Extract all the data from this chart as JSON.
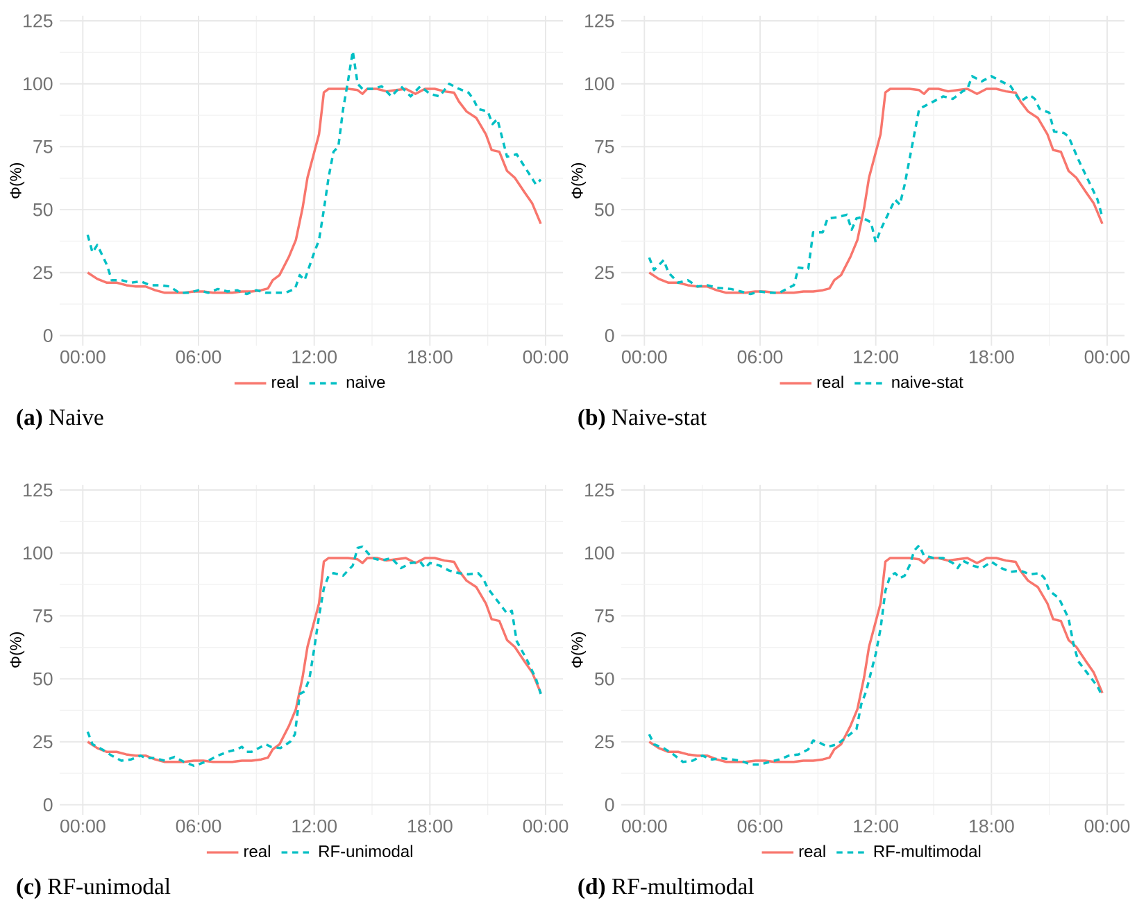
{
  "chart_data": [
    {
      "type": "line",
      "title": "**(a)** Naive",
      "ylabel": "Φ(%)",
      "xlim": [
        -1.2,
        24.9
      ],
      "ylim": [
        -4,
        127
      ],
      "xticks": [
        {
          "value": 0,
          "label": "00:00"
        },
        {
          "value": 6,
          "label": "06:00"
        },
        {
          "value": 12,
          "label": "12:00"
        },
        {
          "value": 18,
          "label": "18:00"
        },
        {
          "value": 24,
          "label": "00:00"
        }
      ],
      "yticks": [
        0,
        25,
        50,
        75,
        100,
        125
      ],
      "grid": true,
      "legend": "bottom",
      "series": [
        {
          "name": "real",
          "color": "#f8766d",
          "line_style": "solid",
          "x": [
            0.25,
            0.75,
            1.25,
            1.75,
            2.25,
            2.75,
            3.25,
            3.75,
            4.25,
            4.75,
            5.25,
            5.75,
            6.25,
            6.75,
            7.25,
            7.75,
            8.25,
            8.75,
            9.25,
            9.6,
            9.85,
            10.2,
            10.7,
            11.05,
            11.4,
            11.65,
            12,
            12.25,
            12.5,
            12.75,
            13.25,
            13.75,
            14.25,
            14.5,
            14.75,
            15.25,
            15.75,
            16.25,
            16.75,
            17.25,
            17.75,
            18.25,
            18.75,
            19.25,
            19.5,
            19.9,
            20.4,
            20.9,
            21.2,
            21.6,
            22,
            22.4,
            22.9,
            23.3,
            23.75
          ],
          "values": [
            25,
            22.5,
            21,
            21,
            20,
            19.5,
            19.5,
            18,
            17,
            17,
            17,
            17.5,
            17.5,
            17,
            17,
            17,
            17.5,
            17.5,
            18,
            18.7,
            22,
            24,
            31.5,
            38,
            50.8,
            62.7,
            72.8,
            80,
            96.6,
            98,
            98,
            98,
            97.5,
            96,
            98,
            98,
            97,
            97.5,
            98,
            96,
            98,
            98,
            97,
            96.5,
            93,
            89,
            86.5,
            80,
            73.7,
            73,
            65.4,
            62.7,
            57,
            52.6,
            44.4
          ]
        },
        {
          "name": "naive",
          "color": "#00bfc4",
          "line_style": "dashed",
          "x": [
            0.25,
            0.5,
            0.75,
            1.25,
            1.5,
            2,
            2.5,
            3,
            3.5,
            4,
            4.5,
            5,
            5.5,
            6,
            6.5,
            7,
            7.5,
            8,
            8.5,
            9,
            9.5,
            10,
            10.5,
            11,
            11.25,
            11.5,
            12,
            12.25,
            12.5,
            12.75,
            13,
            13.25,
            13.5,
            13.75,
            14,
            14.25,
            14.5,
            15,
            15.5,
            16,
            16.5,
            17,
            17.5,
            18,
            18.5,
            19,
            19.5,
            20,
            20.25,
            20.5,
            21,
            21.25,
            21.5,
            22,
            22.5,
            23,
            23.5,
            23.75
          ],
          "values": [
            40,
            33,
            36,
            28,
            22,
            22,
            21,
            21.5,
            20,
            20,
            19.5,
            17,
            17,
            18,
            17,
            18.5,
            17.5,
            18,
            16.5,
            18,
            17,
            17,
            17,
            18.5,
            24,
            22,
            33,
            38,
            50,
            63,
            73,
            75,
            90,
            101,
            113,
            100,
            98,
            98,
            99,
            95,
            99,
            95,
            99,
            96,
            95,
            100,
            98,
            96.5,
            94,
            90,
            89,
            84,
            86,
            71,
            72,
            66,
            60,
            62
          ]
        }
      ]
    },
    {
      "type": "line",
      "title": "**(b)** Naive-stat",
      "ylabel": "Φ(%)",
      "xlim": [
        -1.2,
        24.9
      ],
      "ylim": [
        -4,
        127
      ],
      "xticks": [
        {
          "value": 0,
          "label": "00:00"
        },
        {
          "value": 6,
          "label": "06:00"
        },
        {
          "value": 12,
          "label": "12:00"
        },
        {
          "value": 18,
          "label": "18:00"
        },
        {
          "value": 24,
          "label": "00:00"
        }
      ],
      "yticks": [
        0,
        25,
        50,
        75,
        100,
        125
      ],
      "grid": true,
      "legend": "bottom",
      "series": [
        {
          "name": "real",
          "color": "#f8766d",
          "line_style": "solid",
          "x": [
            0.25,
            0.75,
            1.25,
            1.75,
            2.25,
            2.75,
            3.25,
            3.75,
            4.25,
            4.75,
            5.25,
            5.75,
            6.25,
            6.75,
            7.25,
            7.75,
            8.25,
            8.75,
            9.25,
            9.6,
            9.85,
            10.2,
            10.7,
            11.05,
            11.4,
            11.65,
            12,
            12.25,
            12.5,
            12.75,
            13.25,
            13.75,
            14.25,
            14.5,
            14.75,
            15.25,
            15.75,
            16.25,
            16.75,
            17.25,
            17.75,
            18.25,
            18.75,
            19.25,
            19.5,
            19.9,
            20.4,
            20.9,
            21.2,
            21.6,
            22,
            22.4,
            22.9,
            23.3,
            23.75
          ],
          "values": [
            25,
            22.5,
            21,
            21,
            20,
            19.5,
            19.5,
            18,
            17,
            17,
            17,
            17.5,
            17.5,
            17,
            17,
            17,
            17.5,
            17.5,
            18,
            18.7,
            22,
            24,
            31.5,
            38,
            50.8,
            62.7,
            72.8,
            80,
            96.6,
            98,
            98,
            98,
            97.5,
            96,
            98,
            98,
            97,
            97.5,
            98,
            96,
            98,
            98,
            97,
            96.5,
            93,
            89,
            86.5,
            80,
            73.7,
            73,
            65.4,
            62.7,
            57,
            52.6,
            44.4
          ]
        },
        {
          "name": "naive-stat",
          "color": "#00bfc4",
          "line_style": "dashed",
          "x": [
            0.25,
            0.5,
            1,
            1.25,
            1.75,
            2.25,
            2.75,
            3.25,
            3.75,
            4.5,
            5,
            5.5,
            6,
            6.5,
            7,
            7.5,
            7.75,
            8,
            8.5,
            8.75,
            9.25,
            9.5,
            10,
            10.5,
            10.75,
            11,
            11.25,
            11.75,
            12,
            12.25,
            12.75,
            13,
            13.25,
            13.5,
            13.75,
            14,
            14.25,
            14.5,
            15,
            15.5,
            16,
            16.5,
            16.75,
            17,
            17.5,
            18,
            18.5,
            19,
            19.5,
            20,
            20.25,
            20.5,
            21,
            21.25,
            21.75,
            22,
            22.5,
            23,
            23.5,
            23.75
          ],
          "values": [
            31,
            26,
            30,
            25,
            21,
            22,
            19.5,
            20,
            19,
            18.5,
            17.5,
            16.5,
            17.5,
            17,
            17,
            19,
            20,
            27,
            26.5,
            41,
            41,
            46.5,
            47,
            48,
            42,
            46.5,
            47,
            45,
            37,
            42,
            50,
            54,
            52,
            60,
            70,
            80,
            90,
            91,
            93,
            95,
            94,
            97,
            98,
            103,
            101,
            103,
            101,
            99,
            93,
            95.5,
            94,
            90,
            88.5,
            81,
            80.5,
            79,
            70,
            62,
            54,
            47
          ]
        }
      ]
    },
    {
      "type": "line",
      "title": "**(c)** RF-unimodal",
      "ylabel": "Φ(%)",
      "xlim": [
        -1.2,
        24.9
      ],
      "ylim": [
        -4,
        127
      ],
      "xticks": [
        {
          "value": 0,
          "label": "00:00"
        },
        {
          "value": 6,
          "label": "06:00"
        },
        {
          "value": 12,
          "label": "12:00"
        },
        {
          "value": 18,
          "label": "18:00"
        },
        {
          "value": 24,
          "label": "00:00"
        }
      ],
      "yticks": [
        0,
        25,
        50,
        75,
        100,
        125
      ],
      "grid": true,
      "legend": "bottom",
      "series": [
        {
          "name": "real",
          "color": "#f8766d",
          "line_style": "solid",
          "x": [
            0.25,
            0.75,
            1.25,
            1.75,
            2.25,
            2.75,
            3.25,
            3.75,
            4.25,
            4.75,
            5.25,
            5.75,
            6.25,
            6.75,
            7.25,
            7.75,
            8.25,
            8.75,
            9.25,
            9.6,
            9.85,
            10.2,
            10.7,
            11.05,
            11.4,
            11.65,
            12,
            12.25,
            12.5,
            12.75,
            13.25,
            13.75,
            14.25,
            14.5,
            14.75,
            15.25,
            15.75,
            16.25,
            16.75,
            17.25,
            17.75,
            18.25,
            18.75,
            19.25,
            19.5,
            19.9,
            20.4,
            20.9,
            21.2,
            21.6,
            22,
            22.4,
            22.9,
            23.3,
            23.75
          ],
          "values": [
            25,
            22.5,
            21,
            21,
            20,
            19.5,
            19.5,
            18,
            17,
            17,
            17,
            17.5,
            17.5,
            17,
            17,
            17,
            17.5,
            17.5,
            18,
            18.7,
            22,
            24,
            31.5,
            38,
            50.8,
            62.7,
            72.8,
            80,
            96.6,
            98,
            98,
            98,
            97.5,
            96,
            98,
            98,
            97,
            97.5,
            98,
            96,
            98,
            98,
            97,
            96.5,
            93,
            89,
            86.5,
            80,
            73.7,
            73,
            65.4,
            62.7,
            57,
            52.6,
            44.4
          ]
        },
        {
          "name": "RF-unimodal",
          "color": "#00bfc4",
          "line_style": "dashed",
          "x": [
            0.25,
            0.5,
            1,
            1.5,
            2,
            2.5,
            3,
            3.25,
            3.75,
            4.25,
            4.75,
            5.25,
            5.75,
            6,
            6.5,
            7,
            7.5,
            8,
            8.25,
            8.5,
            8.75,
            9,
            9.5,
            9.75,
            10.25,
            10.75,
            11,
            11.25,
            11.5,
            11.75,
            12,
            12.25,
            12.5,
            12.75,
            13,
            13.5,
            14,
            14.25,
            14.5,
            15,
            15.5,
            16,
            16.5,
            17,
            17.5,
            17.75,
            18,
            18.5,
            19,
            19.5,
            20,
            20.5,
            20.75,
            21,
            21.5,
            22,
            22.25,
            22.5,
            23,
            23.5,
            23.75
          ],
          "values": [
            29,
            24,
            22,
            19.5,
            17.5,
            18,
            19.5,
            18.5,
            18.5,
            17.5,
            19,
            17,
            15.5,
            16,
            17.5,
            19.5,
            21,
            22,
            23,
            21,
            21,
            22,
            24,
            23,
            22.5,
            25,
            28,
            44,
            45,
            50,
            62,
            75,
            86,
            91,
            92,
            91,
            95,
            102,
            102.5,
            98,
            97,
            98,
            94,
            96,
            96.5,
            94,
            96,
            95,
            93,
            92,
            91.5,
            92,
            90,
            86,
            81,
            76,
            77,
            65,
            58,
            50,
            44
          ]
        }
      ]
    },
    {
      "type": "line",
      "title": "**(d)** RF-multimodal",
      "ylabel": "Φ(%)",
      "xlim": [
        -1.2,
        24.9
      ],
      "ylim": [
        -4,
        127
      ],
      "xticks": [
        {
          "value": 0,
          "label": "00:00"
        },
        {
          "value": 6,
          "label": "06:00"
        },
        {
          "value": 12,
          "label": "12:00"
        },
        {
          "value": 18,
          "label": "18:00"
        },
        {
          "value": 24,
          "label": "00:00"
        }
      ],
      "yticks": [
        0,
        25,
        50,
        75,
        100,
        125
      ],
      "grid": true,
      "legend": "bottom",
      "series": [
        {
          "name": "real",
          "color": "#f8766d",
          "line_style": "solid",
          "x": [
            0.25,
            0.75,
            1.25,
            1.75,
            2.25,
            2.75,
            3.25,
            3.75,
            4.25,
            4.75,
            5.25,
            5.75,
            6.25,
            6.75,
            7.25,
            7.75,
            8.25,
            8.75,
            9.25,
            9.6,
            9.85,
            10.2,
            10.7,
            11.05,
            11.4,
            11.65,
            12,
            12.25,
            12.5,
            12.75,
            13.25,
            13.75,
            14.25,
            14.5,
            14.75,
            15.25,
            15.75,
            16.25,
            16.75,
            17.25,
            17.75,
            18.25,
            18.75,
            19.25,
            19.5,
            19.9,
            20.4,
            20.9,
            21.2,
            21.6,
            22,
            22.4,
            22.9,
            23.3,
            23.75
          ],
          "values": [
            25,
            22.5,
            21,
            21,
            20,
            19.5,
            19.5,
            18,
            17,
            17,
            17,
            17.5,
            17.5,
            17,
            17,
            17,
            17.5,
            17.5,
            18,
            18.7,
            22,
            24,
            31.5,
            38,
            50.8,
            62.7,
            72.8,
            80,
            96.6,
            98,
            98,
            98,
            97.5,
            96,
            98,
            98,
            97,
            97.5,
            98,
            96,
            98,
            98,
            97,
            96.5,
            93,
            89,
            86.5,
            80,
            73.7,
            73,
            65.4,
            62.7,
            57,
            52.6,
            44.4
          ]
        },
        {
          "name": "RF-multimodal",
          "color": "#00bfc4",
          "line_style": "dashed",
          "x": [
            0.25,
            0.5,
            1,
            1.5,
            2,
            2.5,
            3,
            3.5,
            4,
            4.5,
            5,
            5.5,
            6,
            6.5,
            7,
            7.5,
            8,
            8.5,
            8.75,
            9,
            9.5,
            10,
            10.5,
            11,
            11.25,
            11.5,
            12,
            12.25,
            12.5,
            12.75,
            13,
            13.25,
            13.5,
            13.75,
            14,
            14.25,
            14.5,
            15,
            15.5,
            16,
            16.25,
            16.5,
            17,
            17.5,
            18,
            18.5,
            19,
            19.5,
            20,
            20.5,
            20.75,
            21,
            21.5,
            22,
            22.25,
            22.5,
            23,
            23.5,
            23.75
          ],
          "values": [
            28,
            24,
            22.5,
            20,
            17,
            17.5,
            19.5,
            18,
            18.5,
            18,
            17.5,
            16,
            16,
            17,
            18,
            19.5,
            20,
            22,
            25.5,
            25,
            23,
            24,
            27,
            30,
            40,
            45,
            60,
            70,
            85,
            91,
            92,
            90,
            91,
            95,
            101,
            103,
            99,
            98,
            98,
            96,
            94,
            97,
            95,
            94,
            96.5,
            94,
            92.5,
            93,
            91.5,
            92,
            90,
            85,
            82,
            74,
            64,
            57,
            52,
            47,
            43
          ]
        }
      ]
    }
  ]
}
